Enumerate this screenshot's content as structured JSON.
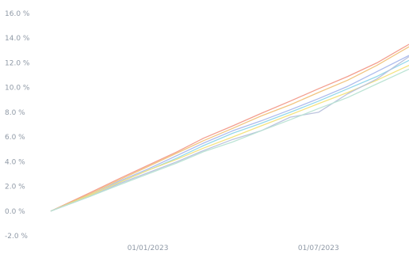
{
  "chart_data": {
    "type": "line",
    "title": "",
    "xlabel": "",
    "ylabel": "",
    "x_start": "2022-09-20",
    "x_end": "2023-10-05",
    "xlim": [
      "2022-09-20",
      "2023-10-05"
    ],
    "ylim": [
      -2.0,
      16.0
    ],
    "y_ticks": [
      -2.0,
      0.0,
      2.0,
      4.0,
      6.0,
      8.0,
      10.0,
      12.0,
      14.0,
      16.0
    ],
    "y_tick_labels": [
      "-2.0 %",
      "0.0 %",
      "2.0 %",
      "4.0 %",
      "6.0 %",
      "8.0 %",
      "10.0 %",
      "12.0 %",
      "14.0 %",
      "16.0 %"
    ],
    "x_ticks": [
      "2023-01-01",
      "2023-07-01"
    ],
    "x_tick_labels": [
      "01/01/2023",
      "01/07/2023"
    ],
    "grid": false,
    "legend": "none",
    "series": [
      {
        "color": "#f29a8a",
        "x": [
          "2022-09-20",
          "2022-11-01",
          "2022-12-01",
          "2023-01-01",
          "2023-02-01",
          "2023-03-01",
          "2023-04-01",
          "2023-05-01",
          "2023-06-01",
          "2023-07-01",
          "2023-08-01",
          "2023-09-01",
          "2023-10-05"
        ],
        "values": [
          0.0,
          1.5,
          2.6,
          3.7,
          4.8,
          5.9,
          6.9,
          7.9,
          8.9,
          9.9,
          10.9,
          12.0,
          13.5
        ]
      },
      {
        "color": "#f0c27a",
        "x": [
          "2022-09-20",
          "2022-11-01",
          "2022-12-01",
          "2023-01-01",
          "2023-02-01",
          "2023-03-01",
          "2023-04-01",
          "2023-05-01",
          "2023-06-01",
          "2023-07-01",
          "2023-08-01",
          "2023-09-01",
          "2023-10-05"
        ],
        "values": [
          0.0,
          1.4,
          2.5,
          3.6,
          4.7,
          5.7,
          6.7,
          7.7,
          8.6,
          9.6,
          10.6,
          11.8,
          13.3
        ]
      },
      {
        "color": "#a9b8ec",
        "x": [
          "2022-09-20",
          "2022-11-01",
          "2022-12-01",
          "2023-01-01",
          "2023-02-01",
          "2023-03-01",
          "2023-04-01",
          "2023-05-01",
          "2023-06-01",
          "2023-07-01",
          "2023-08-01",
          "2023-09-01",
          "2023-10-05"
        ],
        "values": [
          0.0,
          1.3,
          2.4,
          3.4,
          4.5,
          5.5,
          6.5,
          7.3,
          8.2,
          9.1,
          10.1,
          11.3,
          12.6
        ]
      },
      {
        "color": "#8ed6ea",
        "x": [
          "2022-09-20",
          "2022-11-01",
          "2022-12-01",
          "2023-01-01",
          "2023-02-01",
          "2023-03-01",
          "2023-04-01",
          "2023-05-01",
          "2023-06-01",
          "2023-07-01",
          "2023-08-01",
          "2023-09-01",
          "2023-10-05"
        ],
        "values": [
          0.0,
          1.3,
          2.3,
          3.3,
          4.3,
          5.3,
          6.3,
          7.1,
          8.0,
          8.9,
          9.9,
          10.9,
          12.2
        ]
      },
      {
        "color": "#f3e17a",
        "x": [
          "2022-09-20",
          "2022-11-01",
          "2022-12-01",
          "2023-01-01",
          "2023-02-01",
          "2023-03-01",
          "2023-04-01",
          "2023-05-01",
          "2023-06-01",
          "2023-07-01",
          "2023-08-01",
          "2023-09-01",
          "2023-10-05"
        ],
        "values": [
          0.0,
          1.3,
          2.3,
          3.3,
          4.2,
          5.1,
          6.0,
          6.9,
          7.8,
          8.7,
          9.6,
          10.6,
          11.8
        ]
      },
      {
        "color": "#b7c0dc",
        "x": [
          "2022-09-20",
          "2022-11-01",
          "2022-12-01",
          "2023-01-01",
          "2023-02-01",
          "2023-03-01",
          "2023-04-01",
          "2023-05-01",
          "2023-06-01",
          "2023-07-01",
          "2023-08-01",
          "2023-09-01",
          "2023-10-05"
        ],
        "values": [
          0.0,
          1.2,
          2.2,
          3.1,
          4.0,
          4.9,
          5.8,
          6.5,
          7.6,
          8.0,
          9.5,
          10.7,
          12.5
        ]
      },
      {
        "color": "#b8e3d3",
        "x": [
          "2022-09-20",
          "2022-11-01",
          "2022-12-01",
          "2023-01-01",
          "2023-02-01",
          "2023-03-01",
          "2023-04-01",
          "2023-05-01",
          "2023-06-01",
          "2023-07-01",
          "2023-08-01",
          "2023-09-01",
          "2023-10-05"
        ],
        "values": [
          0.0,
          1.2,
          2.1,
          3.0,
          3.9,
          4.8,
          5.6,
          6.5,
          7.4,
          8.3,
          9.2,
          10.3,
          11.5
        ]
      }
    ]
  }
}
